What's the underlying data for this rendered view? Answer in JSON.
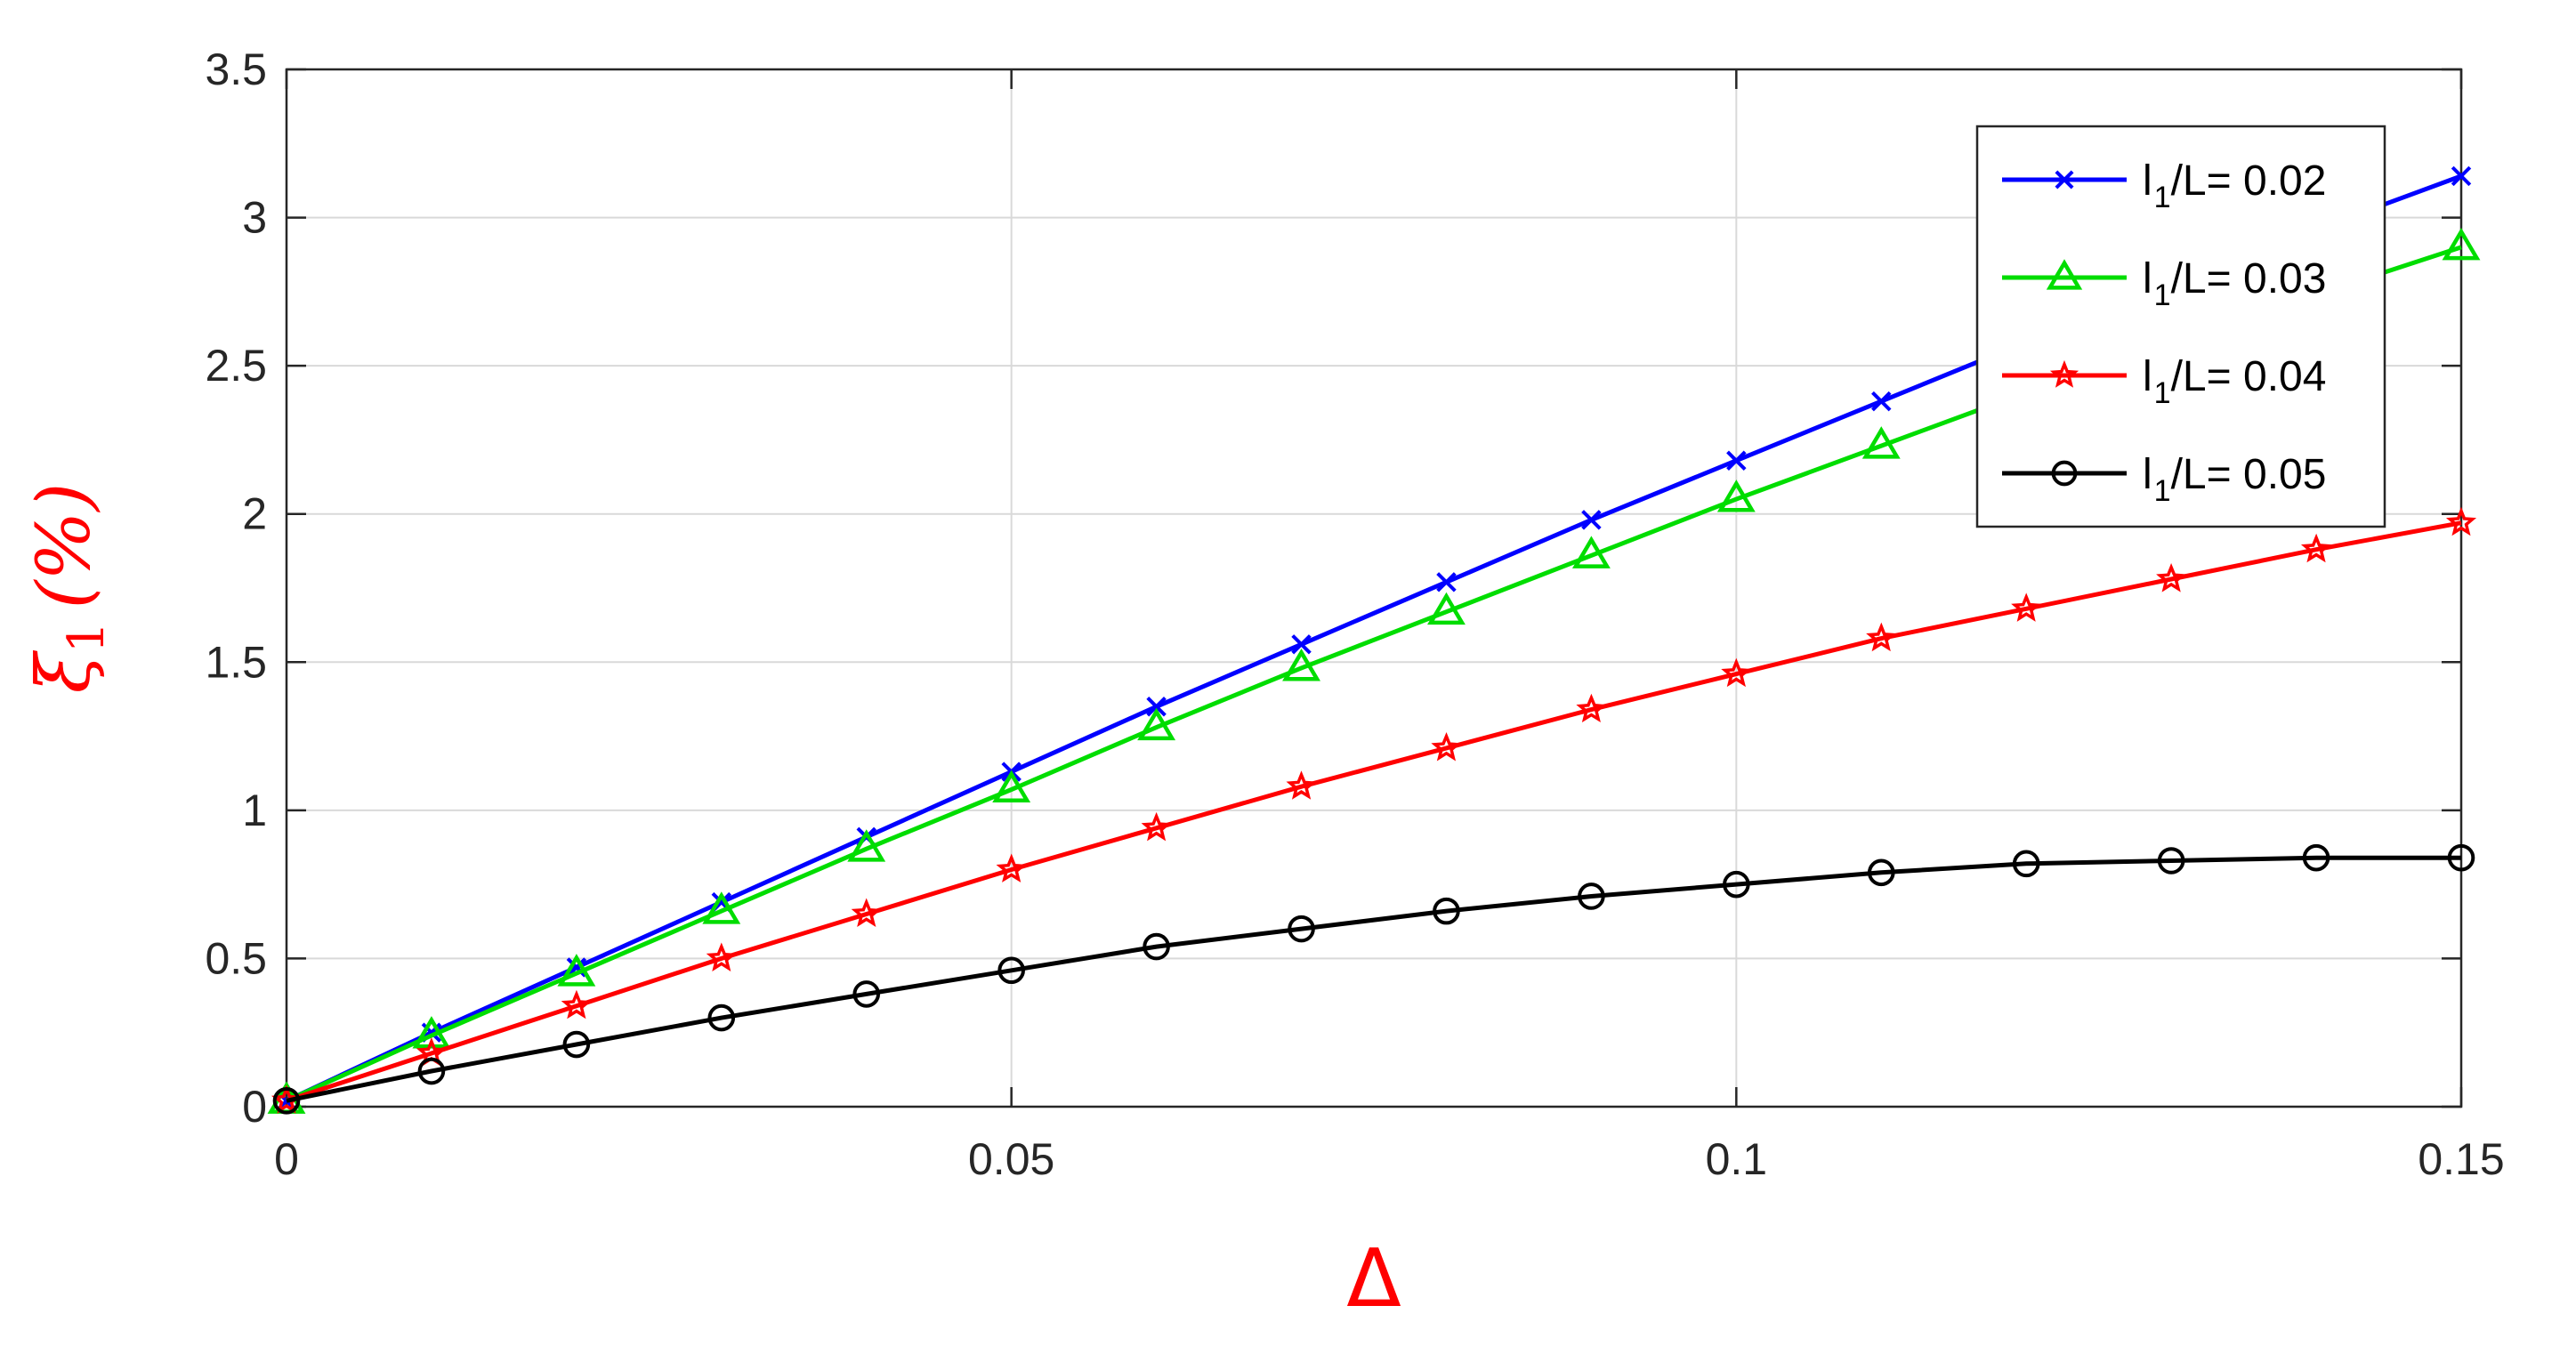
{
  "chart_data": {
    "type": "line",
    "title": "",
    "xlabel": "Δ",
    "ylabel": {
      "main": "ξ",
      "sub": "1",
      "paren_open": "(",
      "unit": "%",
      "paren_close": ")"
    },
    "xlim": [
      0,
      0.15
    ],
    "ylim": [
      0,
      3.5
    ],
    "x_ticks": [
      0,
      0.05,
      0.1,
      0.15
    ],
    "x_tick_labels": [
      "0",
      "0.05",
      "0.1",
      "0.15"
    ],
    "y_ticks": [
      0,
      0.5,
      1,
      1.5,
      2,
      2.5,
      3,
      3.5
    ],
    "y_tick_labels": [
      "0",
      "0.5",
      "1",
      "1.5",
      "2",
      "2.5",
      "3",
      "3.5"
    ],
    "grid": true,
    "legend_position": "top-right",
    "series": [
      {
        "name": {
          "pre": "l",
          "sub": "1",
          "post": "/L= 0.02"
        },
        "color": "#0000ff",
        "marker": "x",
        "x": [
          0,
          0.01,
          0.02,
          0.03,
          0.04,
          0.05,
          0.06,
          0.07,
          0.08,
          0.09,
          0.1,
          0.11,
          0.12,
          0.13,
          0.14,
          0.15
        ],
        "y": [
          0.02,
          0.25,
          0.47,
          0.69,
          0.91,
          1.13,
          1.35,
          1.56,
          1.77,
          1.98,
          2.18,
          2.38,
          2.58,
          2.77,
          2.96,
          3.14
        ]
      },
      {
        "name": {
          "pre": "l",
          "sub": "1",
          "post": "/L= 0.03"
        },
        "color": "#00dd00",
        "marker": "triangle",
        "x": [
          0,
          0.01,
          0.02,
          0.03,
          0.04,
          0.05,
          0.06,
          0.07,
          0.08,
          0.09,
          0.1,
          0.11,
          0.12,
          0.13,
          0.14,
          0.15
        ],
        "y": [
          0.02,
          0.24,
          0.45,
          0.66,
          0.87,
          1.07,
          1.28,
          1.48,
          1.67,
          1.86,
          2.05,
          2.23,
          2.41,
          2.58,
          2.74,
          2.9
        ]
      },
      {
        "name": {
          "pre": "l",
          "sub": "1",
          "post": "/L= 0.04"
        },
        "color": "#ff0000",
        "marker": "star",
        "x": [
          0,
          0.01,
          0.02,
          0.03,
          0.04,
          0.05,
          0.06,
          0.07,
          0.08,
          0.09,
          0.1,
          0.11,
          0.12,
          0.13,
          0.14,
          0.15
        ],
        "y": [
          0.02,
          0.18,
          0.34,
          0.5,
          0.65,
          0.8,
          0.94,
          1.08,
          1.21,
          1.34,
          1.46,
          1.58,
          1.68,
          1.78,
          1.88,
          1.97
        ]
      },
      {
        "name": {
          "pre": "l",
          "sub": "1",
          "post": "/L= 0.05"
        },
        "color": "#000000",
        "marker": "circle",
        "x": [
          0,
          0.01,
          0.02,
          0.03,
          0.04,
          0.05,
          0.06,
          0.07,
          0.08,
          0.09,
          0.1,
          0.11,
          0.12,
          0.13,
          0.14,
          0.15
        ],
        "y": [
          0.02,
          0.12,
          0.21,
          0.3,
          0.38,
          0.46,
          0.54,
          0.6,
          0.66,
          0.71,
          0.75,
          0.79,
          0.82,
          0.83,
          0.84,
          0.84
        ]
      }
    ]
  }
}
